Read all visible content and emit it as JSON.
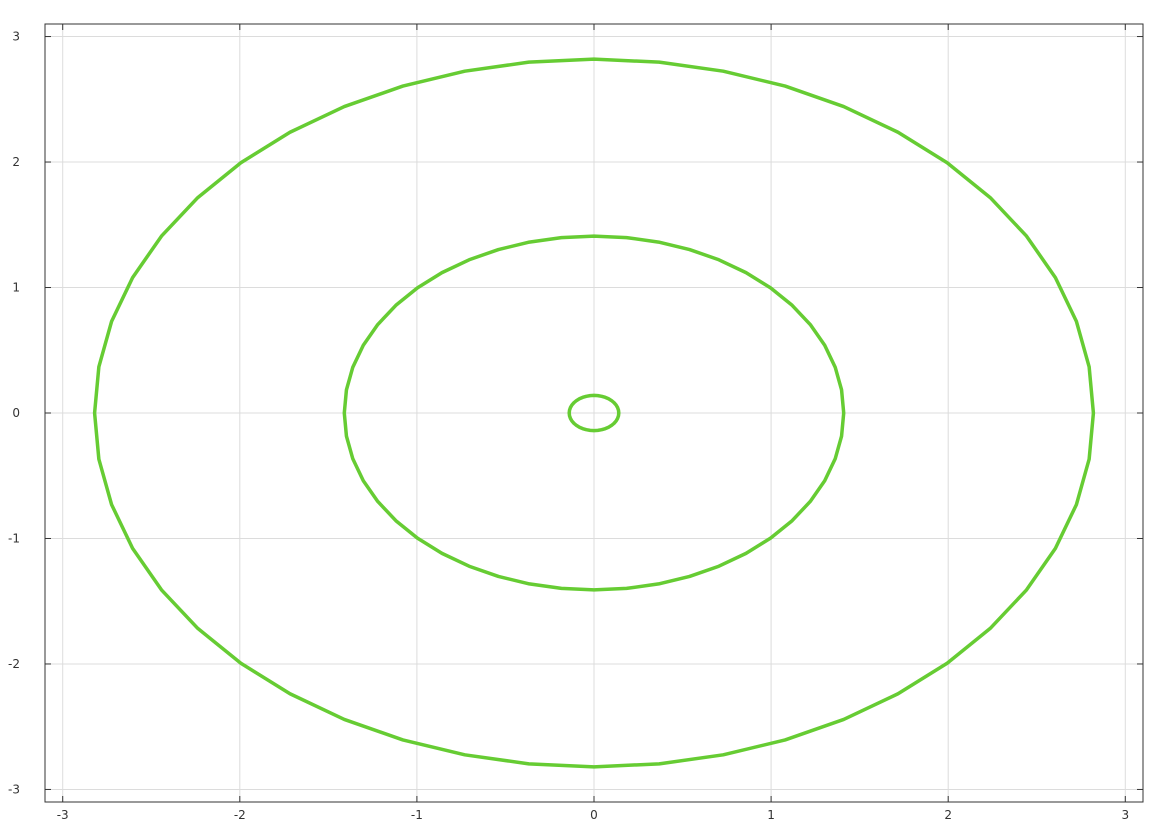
{
  "chart_data": {
    "type": "line",
    "title": "",
    "xlabel": "",
    "ylabel": "",
    "xlim": [
      -3.1,
      3.1
    ],
    "ylim": [
      -3.1,
      3.1
    ],
    "x_ticks": [
      -3,
      -2,
      -1,
      0,
      1,
      2,
      3
    ],
    "y_ticks": [
      -3,
      -2,
      -1,
      0,
      1,
      2,
      3
    ],
    "x_tick_labels": [
      "-3",
      "-2",
      "-1",
      "0",
      "1",
      "2",
      "3"
    ],
    "y_tick_labels": [
      "-3",
      "-2",
      "-1",
      "0",
      "1",
      "2",
      "3"
    ],
    "grid": true,
    "line_color": "#66cc33",
    "series": [
      {
        "shape": "circle",
        "center": [
          0,
          0
        ],
        "radius": 0.14
      },
      {
        "shape": "circle",
        "center": [
          0,
          0
        ],
        "radius": 1.41
      },
      {
        "shape": "circle",
        "center": [
          0,
          0
        ],
        "radius": 2.82
      }
    ]
  }
}
